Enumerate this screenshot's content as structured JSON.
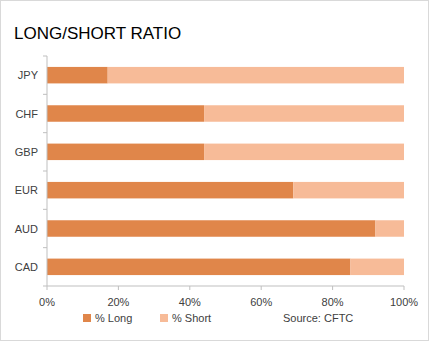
{
  "chart_data": {
    "type": "bar",
    "orientation": "horizontal",
    "stacked": true,
    "title": "LONG/SHORT RATIO",
    "categories": [
      "JPY",
      "CHF",
      "GBP",
      "EUR",
      "AUD",
      "CAD"
    ],
    "series": [
      {
        "name": "% Long",
        "color": "#e0864a",
        "values": [
          17,
          44,
          44,
          69,
          92,
          85
        ]
      },
      {
        "name": "% Short",
        "color": "#f7bb98",
        "values": [
          83,
          56,
          56,
          31,
          8,
          15
        ]
      }
    ],
    "xlim": [
      0,
      100
    ],
    "xticks": [
      {
        "value": 0,
        "label": "0%"
      },
      {
        "value": 20,
        "label": "20%"
      },
      {
        "value": 40,
        "label": "40%"
      },
      {
        "value": 60,
        "label": "60%"
      },
      {
        "value": 80,
        "label": "80%"
      },
      {
        "value": 100,
        "label": "100%"
      }
    ],
    "grid": false,
    "legend": "bottom",
    "annotations": [
      "Source: CFTC"
    ]
  }
}
